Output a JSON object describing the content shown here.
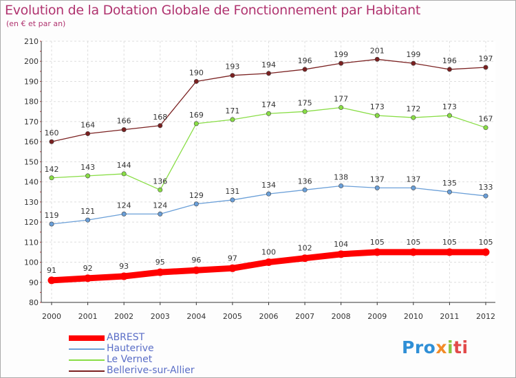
{
  "title": "Evolution de la Dotation Globale de Fonctionnement par Habitant",
  "subtitle": "(en € et par an)",
  "chart_data": {
    "type": "line",
    "categories": [
      "2000",
      "2001",
      "2002",
      "2003",
      "2004",
      "2005",
      "2006",
      "2007",
      "2008",
      "2009",
      "2010",
      "2011",
      "2012"
    ],
    "ylim": [
      80,
      210
    ],
    "yticks": [
      80,
      90,
      100,
      110,
      120,
      130,
      140,
      150,
      160,
      170,
      180,
      190,
      200,
      210
    ],
    "grid": true,
    "legend_position": "bottom-left",
    "series": [
      {
        "name": "ABREST",
        "color": "#ff0000",
        "thick": true,
        "values": [
          91,
          92,
          93,
          95,
          96,
          97,
          100,
          102,
          104,
          105,
          105,
          105,
          105
        ]
      },
      {
        "name": "Hauterive",
        "color": "#6a9fd8",
        "thick": false,
        "values": [
          119,
          121,
          124,
          124,
          129,
          131,
          134,
          136,
          138,
          137,
          137,
          135,
          133
        ]
      },
      {
        "name": "Le Vernet",
        "color": "#88dd44",
        "thick": false,
        "values": [
          142,
          143,
          144,
          136,
          169,
          171,
          174,
          175,
          177,
          173,
          172,
          173,
          167
        ]
      },
      {
        "name": "Bellerive-sur-Allier",
        "color": "#7a2020",
        "thick": false,
        "values": [
          160,
          164,
          166,
          168,
          190,
          193,
          194,
          196,
          199,
          201,
          199,
          196,
          197
        ]
      }
    ]
  },
  "legend": [
    "ABREST",
    "Hauterive",
    "Le Vernet",
    "Bellerive-sur-Allier"
  ],
  "logo": {
    "p1": "Pro",
    "p2": "x",
    "p3": "i",
    "p4": "ti"
  }
}
